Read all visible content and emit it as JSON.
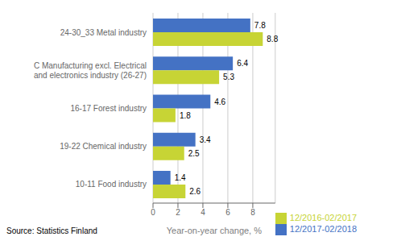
{
  "chart_data": {
    "type": "bar",
    "orientation": "horizontal",
    "categories": [
      "10-11 Food industry",
      "19-22 Chemical industry",
      "16-17 Forest industry",
      "C Manufacturing excl. Electrical\nand electronics industry (26-27)",
      "24-30_33 Metal industry"
    ],
    "series": [
      {
        "name": "12/2017-02/2018",
        "color": "#4472C4",
        "values": [
          1.4,
          3.4,
          4.6,
          6.4,
          7.8
        ]
      },
      {
        "name": "12/2016-02/2017",
        "color": "#C7D435",
        "values": [
          2.6,
          2.5,
          1.8,
          5.3,
          8.8
        ]
      }
    ],
    "xlabel": "Year-on-year change, %",
    "xlim": [
      0,
      9.8
    ],
    "xticks": [
      0,
      2,
      4,
      6,
      8
    ],
    "grid": true,
    "legend": "lower right",
    "data_labels": true,
    "annotations": [
      "Source: Statistics Finland"
    ]
  }
}
